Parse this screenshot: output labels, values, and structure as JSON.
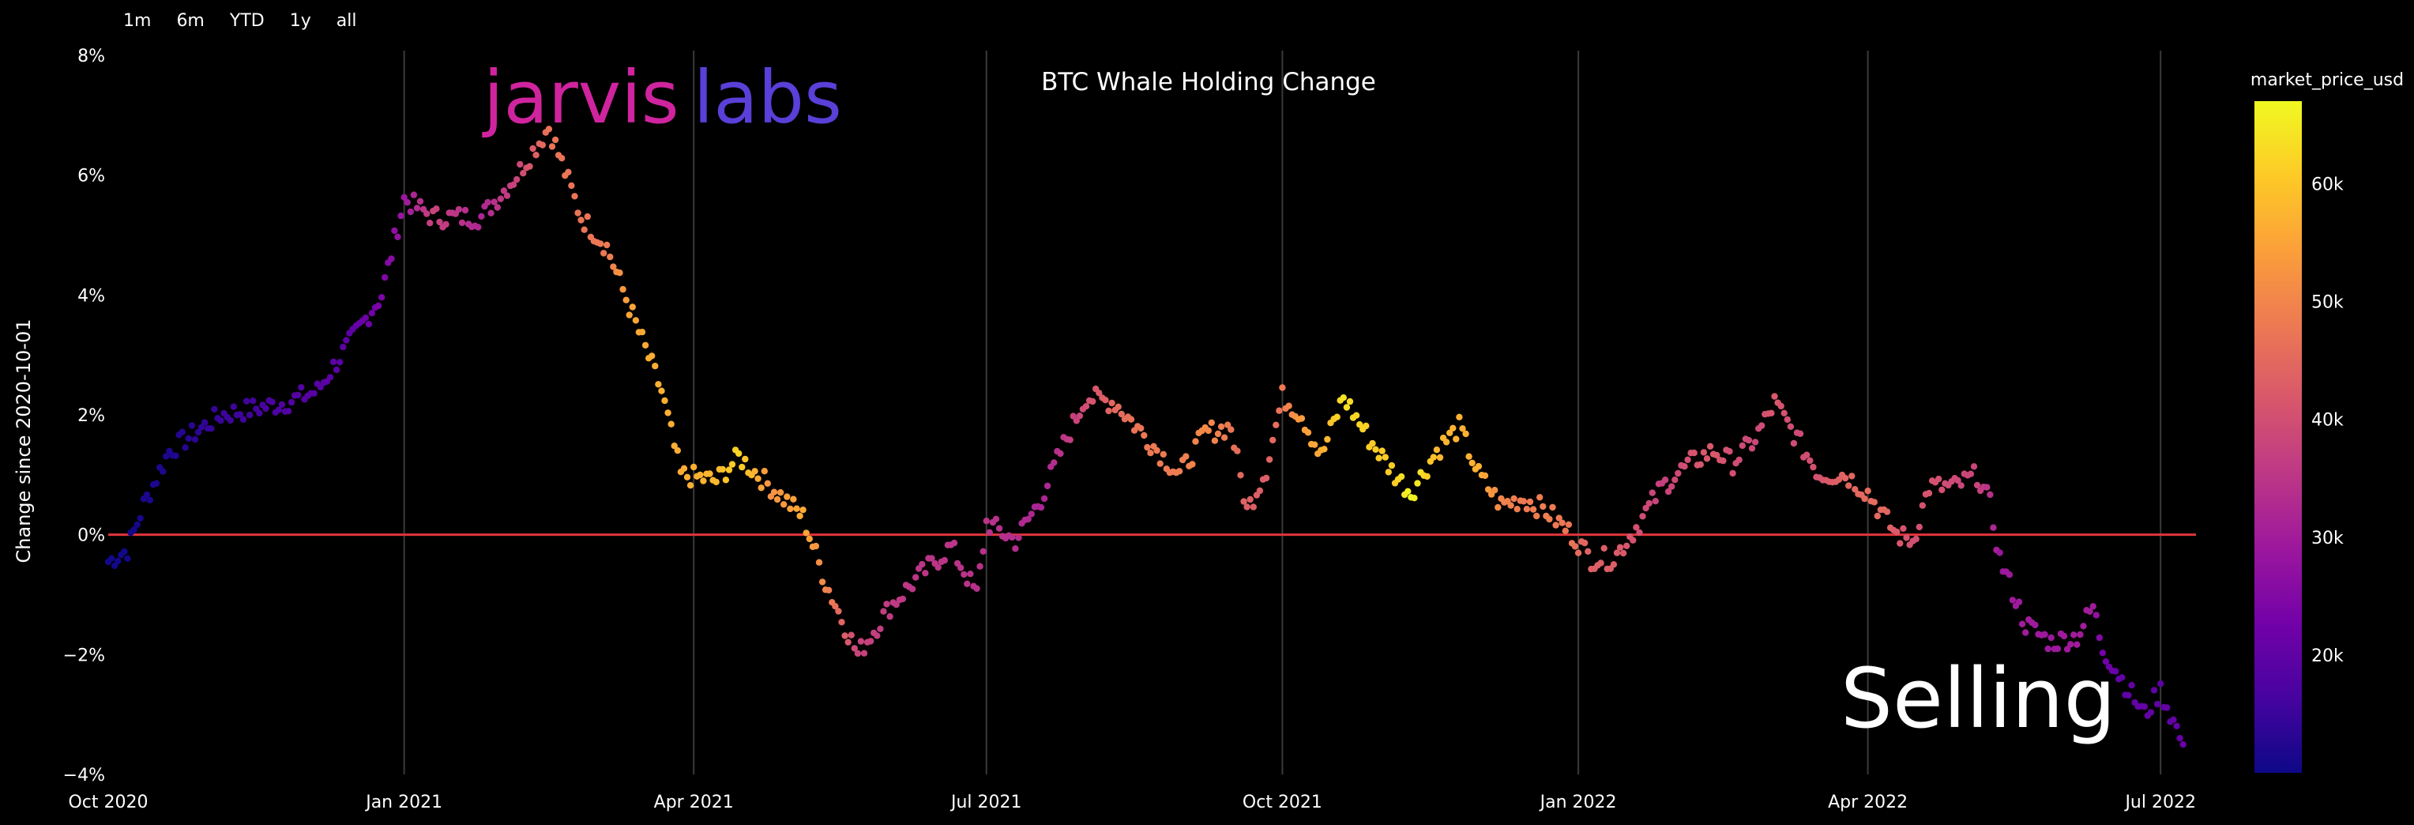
{
  "range_selector": [
    "1m",
    "6m",
    "YTD",
    "1y",
    "all"
  ],
  "logo": {
    "part1": "jarvis",
    "part2": "labs",
    "color1": "#d0249f",
    "color2": "#5a3fd8"
  },
  "annotation": "Selling",
  "colors": {
    "zero_line": "#e0353a",
    "grid": "#3a3a3a",
    "background": "#000000"
  },
  "colorscale": [
    "#0d0887",
    "#46039f",
    "#7201a8",
    "#9c179e",
    "#bd3786",
    "#d8576b",
    "#ed7953",
    "#fb9f3a",
    "#fdca26",
    "#f0f921"
  ],
  "chart_data": {
    "type": "scatter",
    "title": "BTC Whale Holding Change",
    "xlabel": "",
    "ylabel": "Change since 2020-10-01",
    "x_ticks": [
      "Oct 2020",
      "Jan 2021",
      "Apr 2021",
      "Jul 2021",
      "Oct 2021",
      "Jan 2022",
      "Apr 2022",
      "Jul 2022"
    ],
    "x_tick_dates": [
      "2020-10-01",
      "2021-01-01",
      "2021-04-01",
      "2021-07-01",
      "2021-10-01",
      "2022-01-01",
      "2022-04-01",
      "2022-07-01"
    ],
    "xlim": [
      "2020-10-01",
      "2022-07-12"
    ],
    "y_ticks": [
      8,
      6,
      4,
      2,
      0,
      -2,
      -4
    ],
    "y_tick_labels": [
      "8%",
      "6%",
      "4%",
      "2%",
      "0%",
      "−2%",
      "−4%"
    ],
    "ylim": [
      -4,
      8
    ],
    "reference_line": 0,
    "colorbar": {
      "title": "market_price_usd",
      "range": [
        10000,
        67000
      ],
      "ticks": [
        20000,
        30000,
        40000,
        50000,
        60000
      ],
      "tick_labels": [
        "20k",
        "30k",
        "40k",
        "50k",
        "60k"
      ]
    },
    "series_name": "change_pct",
    "anchors": [
      [
        "2020-10-01",
        -0.45,
        10600
      ],
      [
        "2020-10-07",
        -0.25,
        10600
      ],
      [
        "2020-10-12",
        0.5,
        11400
      ],
      [
        "2020-10-20",
        1.4,
        12000
      ],
      [
        "2020-10-28",
        1.7,
        13200
      ],
      [
        "2020-11-05",
        2.0,
        15000
      ],
      [
        "2020-11-15",
        2.1,
        16000
      ],
      [
        "2020-11-25",
        2.2,
        18000
      ],
      [
        "2020-12-05",
        2.4,
        19000
      ],
      [
        "2020-12-15",
        3.2,
        19500
      ],
      [
        "2020-12-25",
        4.0,
        24000
      ],
      [
        "2021-01-01",
        5.6,
        29000
      ],
      [
        "2021-01-10",
        5.3,
        38000
      ],
      [
        "2021-01-25",
        5.3,
        32000
      ],
      [
        "2021-02-05",
        6.0,
        38000
      ],
      [
        "2021-02-15",
        6.8,
        47000
      ],
      [
        "2021-02-25",
        5.3,
        47000
      ],
      [
        "2021-03-05",
        4.8,
        48000
      ],
      [
        "2021-03-12",
        3.8,
        55000
      ],
      [
        "2021-03-22",
        2.4,
        57000
      ],
      [
        "2021-03-28",
        1.0,
        56000
      ],
      [
        "2021-04-08",
        0.9,
        58000
      ],
      [
        "2021-04-15",
        1.3,
        62000
      ],
      [
        "2021-04-25",
        0.8,
        52000
      ],
      [
        "2021-05-05",
        0.3,
        56000
      ],
      [
        "2021-05-12",
        -0.8,
        50000
      ],
      [
        "2021-05-22",
        -2.0,
        38000
      ],
      [
        "2021-06-01",
        -1.2,
        36000
      ],
      [
        "2021-06-10",
        -0.7,
        35000
      ],
      [
        "2021-06-20",
        -0.2,
        35000
      ],
      [
        "2021-06-28",
        -1.0,
        34000
      ],
      [
        "2021-07-01",
        0.2,
        34500
      ],
      [
        "2021-07-10",
        -0.1,
        33500
      ],
      [
        "2021-07-18",
        0.6,
        31500
      ],
      [
        "2021-07-25",
        1.5,
        35000
      ],
      [
        "2021-08-01",
        2.3,
        40000
      ],
      [
        "2021-08-10",
        2.2,
        45000
      ],
      [
        "2021-08-20",
        1.6,
        48000
      ],
      [
        "2021-08-30",
        1.0,
        48500
      ],
      [
        "2021-09-07",
        1.7,
        51000
      ],
      [
        "2021-09-15",
        1.8,
        47500
      ],
      [
        "2021-09-20",
        0.4,
        43000
      ],
      [
        "2021-09-26",
        1.1,
        43000
      ],
      [
        "2021-10-01",
        2.3,
        48000
      ],
      [
        "2021-10-07",
        2.0,
        54000
      ],
      [
        "2021-10-13",
        1.3,
        56000
      ],
      [
        "2021-10-20",
        2.3,
        64000
      ],
      [
        "2021-10-28",
        1.6,
        61000
      ],
      [
        "2021-11-05",
        1.0,
        61000
      ],
      [
        "2021-11-10",
        0.7,
        67000
      ],
      [
        "2021-11-18",
        1.4,
        58000
      ],
      [
        "2021-11-25",
        1.8,
        57000
      ],
      [
        "2021-12-01",
        1.0,
        57000
      ],
      [
        "2021-12-08",
        0.5,
        50000
      ],
      [
        "2021-12-15",
        0.6,
        48000
      ],
      [
        "2021-12-22",
        0.4,
        49000
      ],
      [
        "2021-12-30",
        0.0,
        47000
      ],
      [
        "2022-01-05",
        -0.4,
        43000
      ],
      [
        "2022-01-12",
        -0.4,
        43000
      ],
      [
        "2022-01-20",
        0.2,
        40000
      ],
      [
        "2022-01-27",
        0.8,
        37000
      ],
      [
        "2022-02-05",
        1.2,
        41000
      ],
      [
        "2022-02-12",
        1.4,
        42000
      ],
      [
        "2022-02-18",
        1.2,
        40000
      ],
      [
        "2022-02-25",
        1.6,
        38500
      ],
      [
        "2022-03-03",
        2.2,
        42000
      ],
      [
        "2022-03-10",
        1.6,
        39000
      ],
      [
        "2022-03-17",
        1.0,
        41000
      ],
      [
        "2022-03-25",
        1.0,
        44000
      ],
      [
        "2022-04-01",
        0.7,
        45500
      ],
      [
        "2022-04-06",
        0.3,
        45000
      ],
      [
        "2022-04-10",
        0.0,
        42000
      ],
      [
        "2022-04-15",
        -0.1,
        40000
      ],
      [
        "2022-04-20",
        0.8,
        41000
      ],
      [
        "2022-04-28",
        0.8,
        39000
      ],
      [
        "2022-05-05",
        1.0,
        38000
      ],
      [
        "2022-05-09",
        0.5,
        34000
      ],
      [
        "2022-05-12",
        -0.4,
        29000
      ],
      [
        "2022-05-20",
        -1.5,
        30000
      ],
      [
        "2022-05-28",
        -1.8,
        29000
      ],
      [
        "2022-06-05",
        -1.7,
        30000
      ],
      [
        "2022-06-10",
        -1.2,
        30000
      ],
      [
        "2022-06-13",
        -1.9,
        23000
      ],
      [
        "2022-06-20",
        -2.5,
        20000
      ],
      [
        "2022-06-26",
        -3.0,
        21000
      ],
      [
        "2022-07-01",
        -2.6,
        19500
      ],
      [
        "2022-07-08",
        -3.5,
        21500
      ]
    ]
  }
}
